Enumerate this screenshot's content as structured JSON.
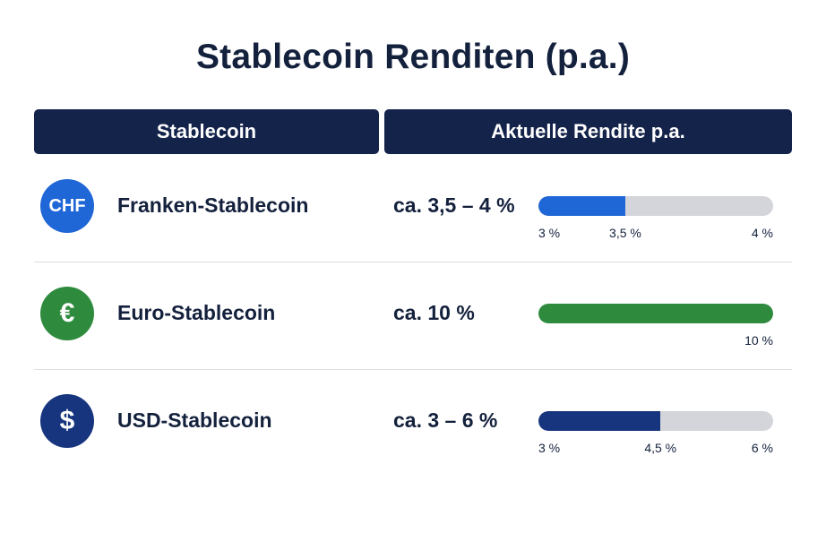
{
  "title": "Stablecoin Renditen (p.a.)",
  "header": {
    "col1": "Stablecoin",
    "col2": "Aktuelle Rendite p.a."
  },
  "chart_data": {
    "type": "table",
    "title": "Stablecoin Renditen (p.a.)",
    "columns": [
      "Stablecoin",
      "Aktuelle Rendite p.a."
    ],
    "rows": [
      {
        "icon": "chf-coin-icon",
        "icon_text": "CHF",
        "icon_color": "#1f66d6",
        "name": "Franken-Stablecoin",
        "yield_label": "ca. 3,5 – 4 %",
        "bar_color": "#1f66d6",
        "bar_fill_fraction": 0.37,
        "ticks": [
          {
            "label": "3 %",
            "pos": "start"
          },
          {
            "label": "3,5 %",
            "pos": "fill"
          },
          {
            "label": "4 %",
            "pos": "end"
          }
        ]
      },
      {
        "icon": "euro-coin-icon",
        "icon_text": "€",
        "icon_color": "#2e8b3e",
        "name": "Euro-Stablecoin",
        "yield_label": "ca. 10 %",
        "bar_color": "#2e8b3e",
        "bar_fill_fraction": 1.0,
        "ticks": [
          {
            "label": "10 %",
            "pos": "end"
          }
        ]
      },
      {
        "icon": "dollar-coin-icon",
        "icon_text": "$",
        "icon_color": "#17357f",
        "name": "USD-Stablecoin",
        "yield_label": "ca. 3 – 6 %",
        "bar_color": "#17357f",
        "bar_fill_fraction": 0.52,
        "ticks": [
          {
            "label": "3 %",
            "pos": "start"
          },
          {
            "label": "4,5 %",
            "pos": "fill"
          },
          {
            "label": "6 %",
            "pos": "end"
          }
        ]
      }
    ]
  }
}
